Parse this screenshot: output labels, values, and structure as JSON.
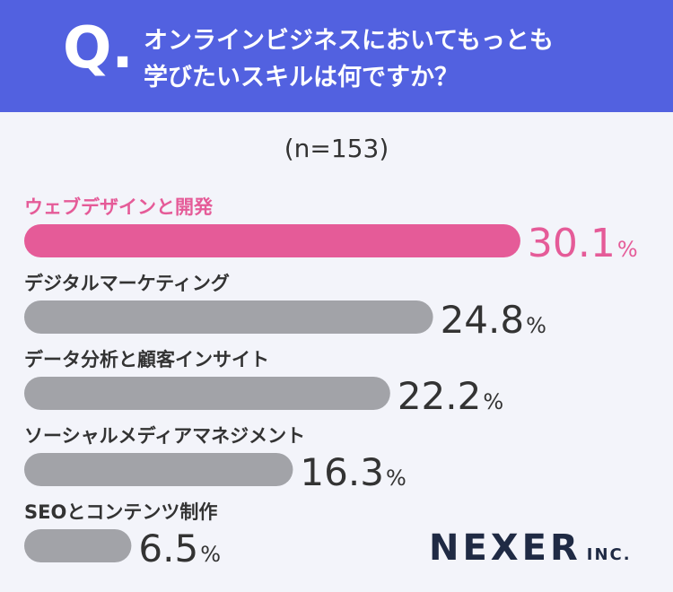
{
  "header": {
    "q_mark": "Q.",
    "question_line1": "オンラインビジネスにおいてもっとも",
    "question_line2": "学びたいスキルは何ですか？"
  },
  "sample_size": "(n=153)",
  "colors": {
    "header_bg": "#5261e0",
    "highlight": "#e55b98",
    "bar": "#a2a3a8",
    "value_text": "#333333",
    "background": "#f3f4fa"
  },
  "chart_data": {
    "type": "bar",
    "orientation": "horizontal",
    "categories": [
      "ウェブデザインと開発",
      "デジタルマーケティング",
      "データ分析と顧客インサイト",
      "ソーシャルメディアマネジメント",
      "SEOとコンテンツ制作"
    ],
    "values": [
      30.1,
      24.8,
      22.2,
      16.3,
      6.5
    ],
    "unit": "%",
    "highlight_index": 0
  },
  "logo": {
    "main": "NEXER",
    "sub": "INC."
  }
}
